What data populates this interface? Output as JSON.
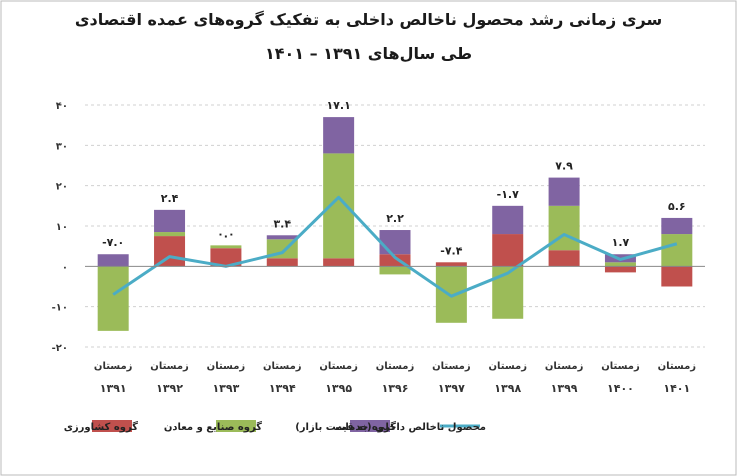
{
  "chart_data": {
    "type": "bar",
    "title": "سری زمانی رشد محصول ناخالص داخلی به تفکیک گروه‌های عمده اقتصادی",
    "subtitle": "طی سال‌های ۱۳۹۱ – ۱۴۰۱",
    "categories_line1": [
      "زمستان",
      "زمستان",
      "زمستان",
      "زمستان",
      "زمستان",
      "زمستان",
      "زمستان",
      "زمستان",
      "زمستان",
      "زمستان",
      "زمستان"
    ],
    "categories_line2": [
      "۱۳۹۱",
      "۱۳۹۲",
      "۱۳۹۳",
      "۱۳۹۴",
      "۱۳۹۵",
      "۱۳۹۶",
      "۱۳۹۷",
      "۱۳۹۸",
      "۱۳۹۹",
      "۱۴۰۰",
      "۱۴۰۱"
    ],
    "ylim": [
      -20,
      40
    ],
    "yticks": [
      {
        "value": 40,
        "label": "۴۰"
      },
      {
        "value": 30,
        "label": "۳۰"
      },
      {
        "value": 20,
        "label": "۲۰"
      },
      {
        "value": 10,
        "label": "۱۰"
      },
      {
        "value": 0,
        "label": "۰"
      },
      {
        "value": -10,
        "label": "-۱۰"
      },
      {
        "value": -20,
        "label": "-۲۰"
      }
    ],
    "stacked_series": [
      {
        "name": "گروه کشاورزی",
        "color": "#c0504d",
        "values": [
          0,
          7.5,
          4.5,
          2,
          2,
          3,
          1,
          8,
          4,
          -1.5,
          -5
        ]
      },
      {
        "name": "گروه صنایع و معادن",
        "color": "#9bbb59",
        "values": [
          -16,
          1,
          0.7,
          4.7,
          26,
          -2,
          -14,
          -13,
          11,
          1,
          8
        ]
      },
      {
        "name": "گروه خدمات",
        "color": "#8064a2",
        "values": [
          3,
          5.5,
          0,
          1,
          9,
          6,
          0,
          7,
          7,
          2,
          4
        ]
      }
    ],
    "line_series": {
      "name": "محصول ناخالص داخلی (به قیمت بازار)",
      "color": "#4bacc6",
      "values": [
        -7.0,
        2.4,
        0.0,
        3.4,
        17.1,
        2.2,
        -7.4,
        -1.7,
        7.9,
        1.7,
        5.6
      ]
    },
    "data_labels": [
      "-۷.۰",
      "۲.۴",
      "۰.۰",
      "۳.۴",
      "۱۷.۱",
      "۲.۲",
      "-۷.۴",
      "-۱.۷",
      "۷.۹",
      "۱.۷",
      "۵.۶"
    ],
    "legend_position": "bottom",
    "grid": true
  }
}
